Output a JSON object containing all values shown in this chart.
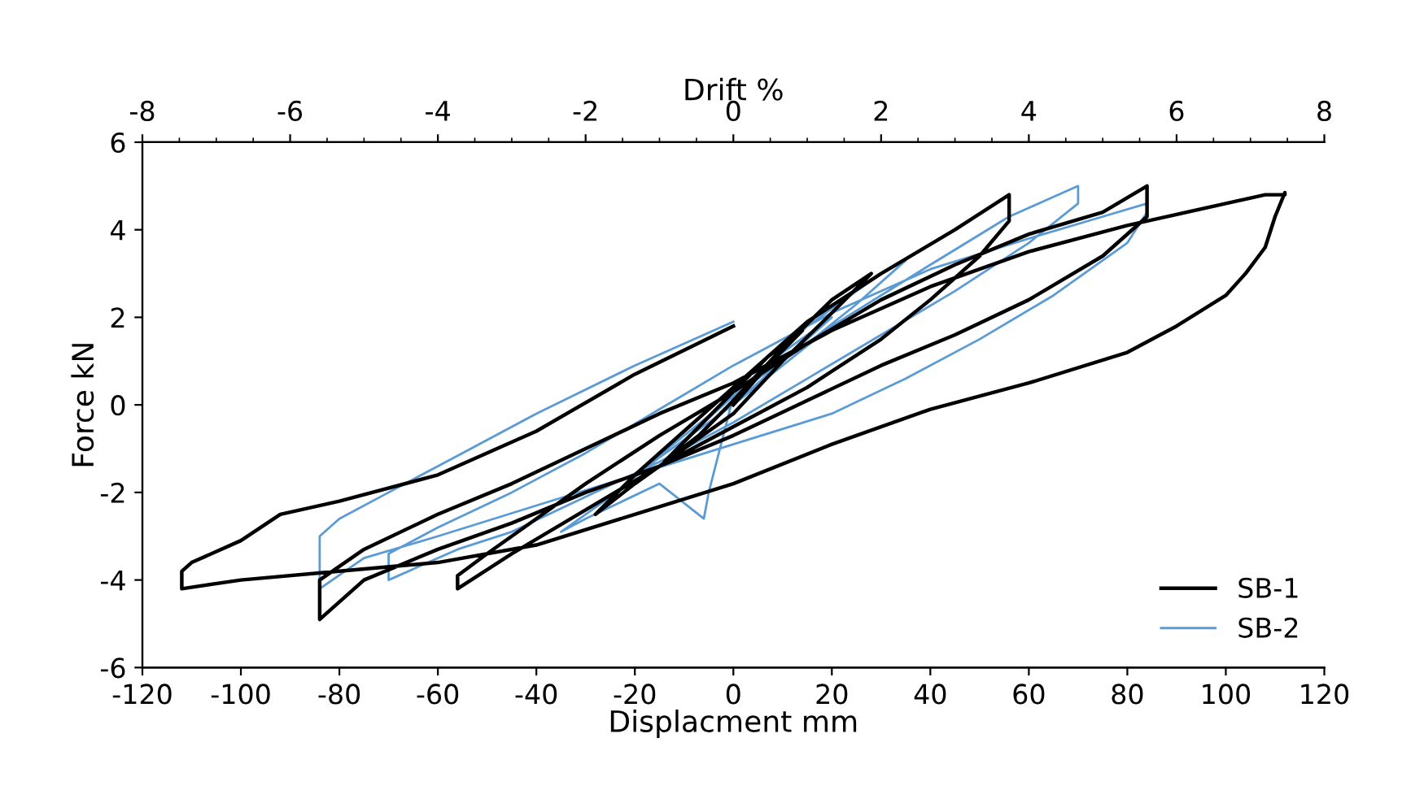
{
  "chart_data": {
    "type": "line",
    "xlabel": "Displacment mm",
    "ylabel": "Force kN",
    "x2label": "Drift %",
    "xlim": [
      -120,
      120
    ],
    "xticks": [
      -120,
      -100,
      -80,
      -60,
      -40,
      -20,
      0,
      20,
      40,
      60,
      80,
      100,
      120
    ],
    "ylim": [
      -6,
      6
    ],
    "yticks": [
      -6,
      -4,
      -2,
      0,
      2,
      4,
      6
    ],
    "x2lim": [
      -8,
      8
    ],
    "x2ticks": [
      -8,
      -6,
      -4,
      -2,
      0,
      2,
      4,
      6,
      8
    ],
    "grid": false,
    "legend": "bottom right",
    "marker": "none",
    "line_style": "solid",
    "series": [
      {
        "name": "SB-1",
        "color": "#000000",
        "x": [
          0,
          7,
          14,
          7,
          0,
          -7,
          -14,
          -7,
          0,
          10,
          20,
          28,
          20,
          10,
          0,
          -10,
          -20,
          -28,
          -20,
          -10,
          0,
          15,
          30,
          45,
          56,
          56,
          50,
          40,
          30,
          15,
          0,
          -15,
          -30,
          -45,
          -56,
          -56,
          -50,
          -40,
          -30,
          -15,
          0,
          15,
          30,
          45,
          60,
          75,
          84,
          84,
          84,
          75,
          60,
          45,
          30,
          15,
          0,
          -15,
          -30,
          -45,
          -60,
          -75,
          -84,
          -84,
          -84,
          -75,
          -60,
          -45,
          -30,
          -15,
          0,
          20,
          40,
          60,
          80,
          100,
          108,
          112,
          112,
          110,
          108,
          104,
          100,
          90,
          80,
          60,
          40,
          20,
          0,
          -20,
          -40,
          -60,
          -80,
          -100,
          -112,
          -112,
          -110,
          -100,
          -92,
          -80,
          -60,
          -40,
          -20,
          0
        ],
        "values": [
          0,
          0.9,
          1.7,
          1.1,
          0.3,
          -0.5,
          -1.3,
          -0.7,
          0.1,
          1.3,
          2.4,
          3.0,
          2.1,
          1.0,
          -0.2,
          -1.0,
          -1.8,
          -2.5,
          -1.6,
          -0.6,
          0.4,
          1.9,
          3.0,
          4.0,
          4.8,
          4.2,
          3.4,
          2.4,
          1.5,
          0.4,
          -0.5,
          -1.4,
          -2.4,
          -3.4,
          -4.2,
          -3.9,
          -3.4,
          -2.6,
          -1.8,
          -0.7,
          0.3,
          1.4,
          2.4,
          3.2,
          3.9,
          4.4,
          5.0,
          4.6,
          4.3,
          3.4,
          2.4,
          1.6,
          0.9,
          0.1,
          -0.7,
          -1.4,
          -2.0,
          -2.7,
          -3.3,
          -4.0,
          -4.9,
          -4.4,
          -4.0,
          -3.3,
          -2.5,
          -1.8,
          -1.0,
          -0.2,
          0.5,
          1.7,
          2.7,
          3.5,
          4.1,
          4.6,
          4.8,
          4.8,
          4.85,
          4.3,
          3.6,
          3.0,
          2.5,
          1.8,
          1.2,
          0.5,
          -0.1,
          -0.9,
          -1.8,
          -2.5,
          -3.2,
          -3.6,
          -3.8,
          -4.0,
          -4.2,
          -3.8,
          -3.6,
          -3.1,
          -2.5,
          -2.2,
          -1.6,
          -0.6,
          0.7,
          1.8
        ]
      },
      {
        "name": "SB-2",
        "color": "#5b9bd5",
        "x": [
          0,
          10,
          20,
          10,
          0,
          -10,
          -20,
          -10,
          0,
          15,
          30,
          35,
          25,
          15,
          0,
          -5,
          -6,
          -15,
          -30,
          -35,
          -25,
          -15,
          0,
          20,
          40,
          56,
          70,
          70,
          60,
          45,
          30,
          15,
          0,
          -15,
          -30,
          -45,
          -56,
          -70,
          -70,
          -60,
          -45,
          -30,
          -15,
          0,
          20,
          40,
          60,
          75,
          84,
          84,
          80,
          65,
          50,
          35,
          20,
          0,
          -20,
          -40,
          -60,
          -75,
          -84,
          -84,
          -80,
          -70,
          -55,
          -40,
          -20,
          0
        ],
        "values": [
          0,
          1.0,
          2.0,
          1.2,
          0.2,
          -0.7,
          -1.6,
          -0.8,
          0.2,
          1.8,
          3.0,
          3.3,
          2.3,
          1.4,
          0.2,
          -2.0,
          -2.6,
          -1.8,
          -2.6,
          -2.9,
          -2.1,
          -1.2,
          0,
          1.8,
          3.2,
          4.3,
          5.0,
          4.6,
          3.7,
          2.6,
          1.6,
          0.6,
          -0.4,
          -1.3,
          -2.1,
          -2.9,
          -3.3,
          -4.0,
          -3.4,
          -2.8,
          -2.0,
          -1.1,
          -0.1,
          0.9,
          2.1,
          3.1,
          3.8,
          4.3,
          4.6,
          4.4,
          3.7,
          2.5,
          1.5,
          0.6,
          -0.2,
          -0.9,
          -1.6,
          -2.3,
          -3.0,
          -3.5,
          -4.2,
          -3.0,
          -2.6,
          -2.0,
          -1.1,
          -0.2,
          0.9,
          1.9
        ]
      }
    ]
  }
}
